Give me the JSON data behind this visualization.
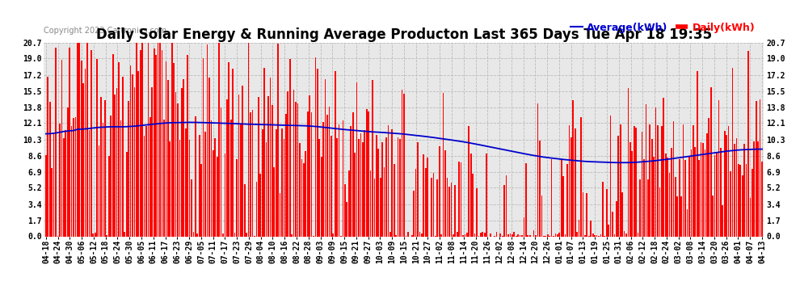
{
  "title": "Daily Solar Energy & Running Average Producton Last 365 Days Tue Apr 18 19:35",
  "copyright": "Copyright 2023 Cartronics.com",
  "legend_avg": "Average(kWh)",
  "legend_daily": "Daily(kWh)",
  "bar_color": "#ff0000",
  "avg_color": "#0000cd",
  "background_color": "#ffffff",
  "plot_bg_color": "#e8e8e8",
  "grid_color": "#bbbbbb",
  "yticks": [
    0.0,
    1.7,
    3.4,
    5.2,
    6.9,
    8.6,
    10.3,
    12.1,
    13.8,
    15.5,
    17.2,
    19.0,
    20.7
  ],
  "ylim": [
    0.0,
    20.7
  ],
  "x_labels": [
    "04-18",
    "04-24",
    "04-30",
    "05-06",
    "05-12",
    "05-18",
    "05-24",
    "05-30",
    "06-05",
    "06-11",
    "06-17",
    "06-23",
    "06-29",
    "07-05",
    "07-11",
    "07-17",
    "07-23",
    "07-29",
    "08-04",
    "08-10",
    "08-16",
    "08-22",
    "08-28",
    "09-03",
    "09-09",
    "09-15",
    "09-21",
    "09-27",
    "10-03",
    "10-09",
    "10-15",
    "10-21",
    "10-27",
    "11-02",
    "11-08",
    "11-14",
    "11-20",
    "11-26",
    "12-02",
    "12-08",
    "12-14",
    "12-20",
    "12-26",
    "01-01",
    "01-07",
    "01-13",
    "01-19",
    "01-25",
    "01-31",
    "02-06",
    "02-12",
    "02-18",
    "02-24",
    "03-02",
    "03-08",
    "03-14",
    "03-20",
    "03-26",
    "04-01",
    "04-07",
    "04-13"
  ],
  "title_fontsize": 12,
  "copyright_fontsize": 7,
  "legend_fontsize": 9,
  "tick_fontsize": 7,
  "n_days": 365,
  "figwidth": 9.9,
  "figheight": 3.75,
  "dpi": 100
}
